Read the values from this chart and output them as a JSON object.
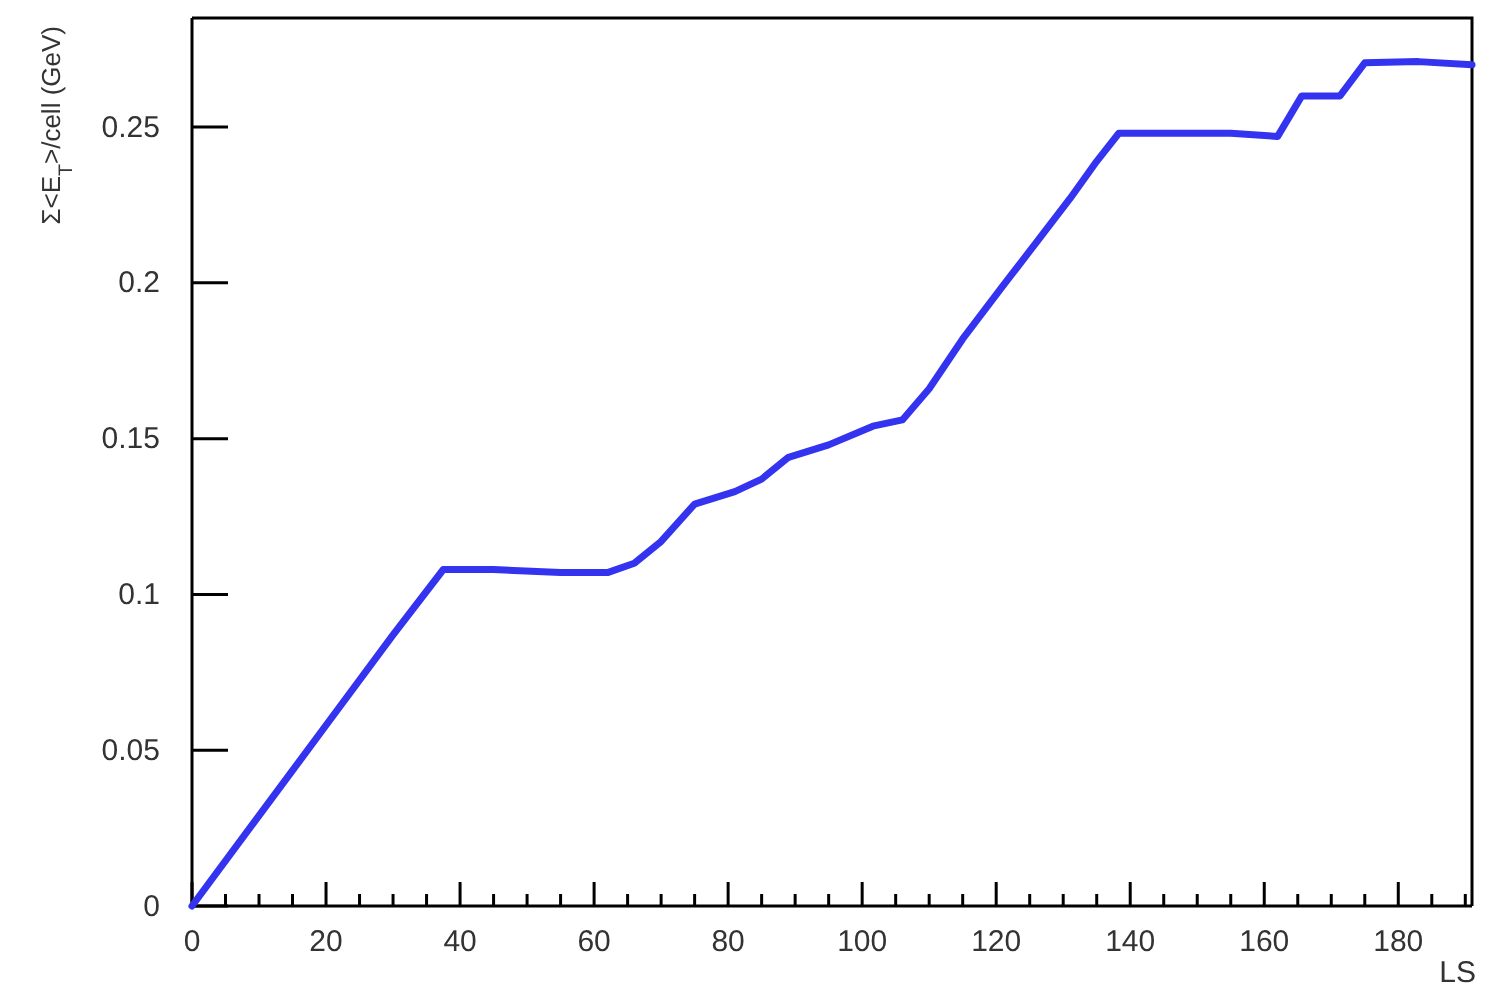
{
  "chart_data": {
    "type": "line",
    "xlabel": "LS",
    "ylabel": "Σ<E$_{T}$>/cell (GeV)",
    "xlim": [
      0,
      191
    ],
    "ylim": [
      0,
      0.285
    ],
    "xticks": [
      0,
      {
        "value": 5,
        "label": null
      },
      {
        "value": 10,
        "label": null
      },
      {
        "value": 15,
        "label": null
      },
      20,
      {
        "value": 25,
        "label": null
      },
      {
        "value": 30,
        "label": null
      },
      {
        "value": 35,
        "label": null
      },
      40,
      {
        "value": 45,
        "label": null
      },
      {
        "value": 50,
        "label": null
      },
      {
        "value": 55,
        "label": null
      },
      60,
      {
        "value": 65,
        "label": null
      },
      {
        "value": 70,
        "label": null
      },
      {
        "value": 75,
        "label": null
      },
      80,
      {
        "value": 85,
        "label": null
      },
      {
        "value": 90,
        "label": null
      },
      {
        "value": 95,
        "label": null
      },
      100,
      {
        "value": 105,
        "label": null
      },
      {
        "value": 110,
        "label": null
      },
      {
        "value": 115,
        "label": null
      },
      120,
      {
        "value": 125,
        "label": null
      },
      {
        "value": 130,
        "label": null
      },
      {
        "value": 135,
        "label": null
      },
      140,
      {
        "value": 145,
        "label": null
      },
      {
        "value": 150,
        "label": null
      },
      {
        "value": 155,
        "label": null
      },
      160,
      {
        "value": 165,
        "label": null
      },
      {
        "value": 170,
        "label": null
      },
      {
        "value": 175,
        "label": null
      },
      180,
      {
        "value": 185,
        "label": null
      },
      {
        "value": 190,
        "label": null
      }
    ],
    "yticks": [
      0,
      0.05,
      0.1,
      0.15,
      0.2,
      0.25
    ],
    "grid": false,
    "marker": "none",
    "line_style": "solid",
    "series": [
      {
        "color": "#3333f0",
        "x": [
          0,
          10,
          20,
          30,
          37.5,
          45,
          55,
          62,
          66,
          70,
          75,
          81,
          85,
          89,
          95,
          101.6,
          106,
          110,
          115,
          121,
          126,
          131,
          135,
          138.3,
          145,
          155,
          162,
          165.6,
          171.3,
          175,
          183,
          191
        ],
        "values": [
          0,
          0.029,
          0.058,
          0.087,
          0.108,
          0.108,
          0.107,
          0.107,
          0.11,
          0.117,
          0.129,
          0.133,
          0.137,
          0.144,
          0.148,
          0.154,
          0.156,
          0.166,
          0.182,
          0.199,
          0.213,
          0.227,
          0.239,
          0.248,
          0.248,
          0.248,
          0.247,
          0.26,
          0.26,
          0.2706,
          0.271,
          0.27
        ]
      }
    ]
  }
}
